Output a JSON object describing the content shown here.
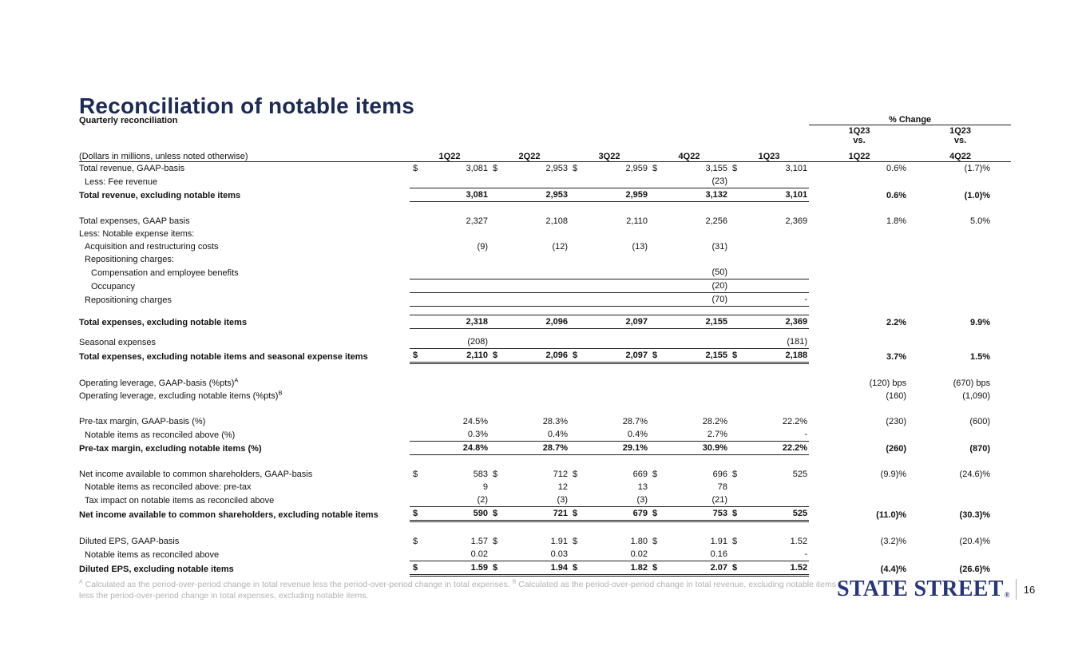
{
  "slide": {
    "title": "Reconciliation of notable items",
    "page_number": "16",
    "logo_text": "STATE STREET",
    "logo_registered": "®",
    "title_color": "#1b2b55",
    "logo_color": "#26357d"
  },
  "footnote": {
    "marker_a": "A",
    "text_a": "Calculated as the period-over-period change in total revenue less the period-over-period change in total expenses.",
    "marker_b": "B",
    "text_b": "Calculated as the period-over-period change in total revenue, excluding notable items less the period-over-period change in total expenses, excluding notable items."
  },
  "table": {
    "section_title": "Quarterly reconciliation",
    "pct_change_header": "% Change",
    "row_label_header": "(Dollars in millions, unless noted otherwise)",
    "currency_symbol": "$",
    "quarter_columns": [
      "1Q22",
      "2Q22",
      "3Q22",
      "4Q22",
      "1Q23"
    ],
    "change_columns": [
      {
        "period": "1Q23",
        "vs": "vs.",
        "base": "1Q22"
      },
      {
        "period": "1Q23",
        "vs": "vs.",
        "base": "4Q22"
      }
    ],
    "rows": [
      {
        "label": "Total revenue, GAAP-basis",
        "dollar": true,
        "values": [
          "3,081",
          "2,953",
          "2,959",
          "3,155",
          "3,101"
        ],
        "chg": [
          "0.6%",
          "(1.7)%"
        ]
      },
      {
        "label": "Less: Fee revenue",
        "indent": 1,
        "values": [
          "",
          "",
          "",
          "(23)",
          ""
        ],
        "chg": [
          "",
          ""
        ]
      },
      {
        "label": "Total revenue, excluding notable items",
        "bold": true,
        "bt": true,
        "bb": "single",
        "values": [
          "3,081",
          "2,953",
          "2,959",
          "3,132",
          "3,101"
        ],
        "chg": [
          "0.6%",
          "(1.0)%"
        ]
      },
      {
        "spacer": 16
      },
      {
        "label": "Total expenses, GAAP basis",
        "values": [
          "2,327",
          "2,108",
          "2,110",
          "2,256",
          "2,369"
        ],
        "chg": [
          "1.8%",
          "5.0%"
        ]
      },
      {
        "label": "Less: Notable expense items:",
        "values": [
          "",
          "",
          "",
          "",
          ""
        ],
        "chg": [
          "",
          ""
        ]
      },
      {
        "label": "Acquisition and restructuring costs",
        "indent": 1,
        "values": [
          "(9)",
          "(12)",
          "(13)",
          "(31)",
          ""
        ],
        "chg": [
          "",
          ""
        ]
      },
      {
        "label": "Repositioning charges:",
        "indent": 1,
        "values": [
          "",
          "",
          "",
          "",
          ""
        ],
        "chg": [
          "",
          ""
        ]
      },
      {
        "label": "Compensation and employee benefits",
        "indent": 2,
        "bb": "single",
        "values": [
          "",
          "",
          "",
          "(50)",
          ""
        ],
        "chg": [
          "",
          ""
        ]
      },
      {
        "label": "Occupancy",
        "indent": 2,
        "bb": "single",
        "values": [
          "",
          "",
          "",
          "(20)",
          ""
        ],
        "chg": [
          "",
          ""
        ]
      },
      {
        "label": "Repositioning charges",
        "indent": 1,
        "bb": "single",
        "values": [
          "",
          "",
          "",
          "(70)",
          "-"
        ],
        "chg": [
          "",
          ""
        ]
      },
      {
        "spacer": 10
      },
      {
        "label": "Total expenses, excluding notable items",
        "bold": true,
        "bt": true,
        "bb": "single",
        "values": [
          "2,318",
          "2,096",
          "2,097",
          "2,155",
          "2,369"
        ],
        "chg": [
          "2.2%",
          "9.9%"
        ]
      },
      {
        "spacer": 8
      },
      {
        "label": "Seasonal expenses",
        "values": [
          "(208)",
          "",
          "",
          "",
          "(181)"
        ],
        "chg": [
          "",
          ""
        ]
      },
      {
        "label": "Total expenses, excluding notable items and seasonal expense items",
        "bold": true,
        "dollar": true,
        "bt": true,
        "bb": "double",
        "values": [
          "2,110",
          "2,096",
          "2,097",
          "2,155",
          "2,188"
        ],
        "chg": [
          "3.7%",
          "1.5%"
        ]
      },
      {
        "spacer": 16
      },
      {
        "label": "Operating leverage, GAAP-basis (%pts)",
        "sup": "A",
        "values": [
          "",
          "",
          "",
          "",
          ""
        ],
        "chg": [
          "(120) bps",
          "(670) bps"
        ]
      },
      {
        "label": "Operating leverage, excluding notable items (%pts)",
        "sup": "B",
        "values": [
          "",
          "",
          "",
          "",
          ""
        ],
        "chg": [
          "(160)",
          "(1,090)"
        ]
      },
      {
        "spacer": 16
      },
      {
        "label": "Pre-tax margin, GAAP-basis (%)",
        "values": [
          "24.5%",
          "28.3%",
          "28.7%",
          "28.2%",
          "22.2%"
        ],
        "chg": [
          "(230)",
          "(600)"
        ]
      },
      {
        "label": "Notable items as reconciled above (%)",
        "indent": 1,
        "values": [
          "0.3%",
          "0.4%",
          "0.4%",
          "2.7%",
          "-"
        ],
        "chg": [
          "",
          ""
        ]
      },
      {
        "label": "Pre-tax margin, excluding notable items (%)",
        "bold": true,
        "bt": true,
        "bb": "single",
        "values": [
          "24.8%",
          "28.7%",
          "29.1%",
          "30.9%",
          "22.2%"
        ],
        "chg": [
          "(260)",
          "(870)"
        ]
      },
      {
        "spacer": 16
      },
      {
        "label": "Net income available to common shareholders, GAAP-basis",
        "dollar": true,
        "values": [
          "583",
          "712",
          "669",
          "696",
          "525"
        ],
        "chg": [
          "(9.9)%",
          "(24.6)%"
        ]
      },
      {
        "label": "Notable items as reconciled above: pre-tax",
        "indent": 1,
        "values": [
          "9",
          "12",
          "13",
          "78",
          ""
        ],
        "chg": [
          "",
          ""
        ]
      },
      {
        "label": "Tax impact on notable items as reconciled above",
        "indent": 1,
        "values": [
          "(2)",
          "(3)",
          "(3)",
          "(21)",
          ""
        ],
        "chg": [
          "",
          ""
        ]
      },
      {
        "label": "Net income available to common shareholders, excluding notable items",
        "bold": true,
        "dollar": true,
        "bt": true,
        "bb": "double",
        "values": [
          "590",
          "721",
          "679",
          "753",
          "525"
        ],
        "chg": [
          "(11.0)%",
          "(30.3)%"
        ]
      },
      {
        "spacer": 16
      },
      {
        "label": "Diluted EPS, GAAP-basis",
        "dollar": true,
        "values": [
          "1.57",
          "1.91",
          "1.80",
          "1.91",
          "1.52"
        ],
        "chg": [
          "(3.2)%",
          "(20.4)%"
        ]
      },
      {
        "label": "Notable items as reconciled above",
        "indent": 1,
        "values": [
          "0.02",
          "0.03",
          "0.02",
          "0.16",
          "-"
        ],
        "chg": [
          "",
          ""
        ]
      },
      {
        "label": "Diluted EPS, excluding notable items",
        "bold": true,
        "dollar": true,
        "bt": true,
        "bb": "double",
        "values": [
          "1.59",
          "1.94",
          "1.82",
          "2.07",
          "1.52"
        ],
        "chg": [
          "(4.4)%",
          "(26.6)%"
        ]
      }
    ]
  }
}
